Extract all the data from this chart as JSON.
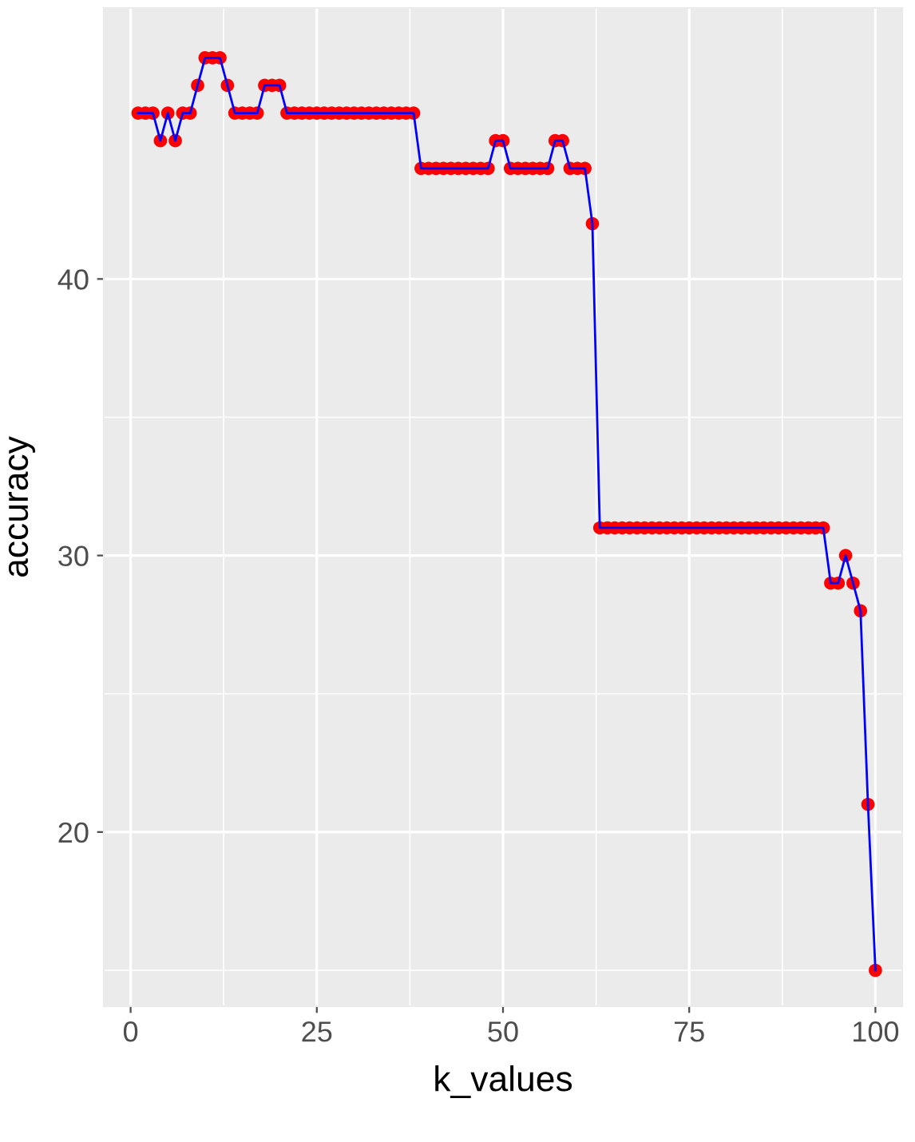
{
  "chart_data": {
    "type": "line",
    "xlabel": "k_values",
    "ylabel": "accuracy",
    "x": [
      1,
      2,
      3,
      4,
      5,
      6,
      7,
      8,
      9,
      10,
      11,
      12,
      13,
      14,
      15,
      16,
      17,
      18,
      19,
      20,
      21,
      22,
      23,
      24,
      25,
      26,
      27,
      28,
      29,
      30,
      31,
      32,
      33,
      34,
      35,
      36,
      37,
      38,
      39,
      40,
      41,
      42,
      43,
      44,
      45,
      46,
      47,
      48,
      49,
      50,
      51,
      52,
      53,
      54,
      55,
      56,
      57,
      58,
      59,
      60,
      61,
      62,
      63,
      64,
      65,
      66,
      67,
      68,
      69,
      70,
      71,
      72,
      73,
      74,
      75,
      76,
      77,
      78,
      79,
      80,
      81,
      82,
      83,
      84,
      85,
      86,
      87,
      88,
      89,
      90,
      91,
      92,
      93,
      94,
      95,
      96,
      97,
      98,
      99,
      100
    ],
    "series": [
      {
        "color": "#0000ff",
        "colors": [
          "#ff0000",
          "#ff0000",
          "#ff0000",
          "#ff0000",
          "#ff0000",
          "#ff0000",
          "#ff0000",
          "#ff0000",
          "#ff0000",
          "#ff0000",
          "#ff0000",
          "#ff0000",
          "#ff0000",
          "#ff0000",
          "#ff0000",
          "#ff0000",
          "#ff0000",
          "#ff0000",
          "#ff0000",
          "#ff0000",
          "#ff0000",
          "#ff0000",
          "#ff0000",
          "#ff0000",
          "#ff0000",
          "#ff0000",
          "#ff0000",
          "#ff0000",
          "#ff0000",
          "#ff0000",
          "#ff0000",
          "#ff0000",
          "#ff0000",
          "#ff0000",
          "#ff0000",
          "#ff0000",
          "#ff0000",
          "#ff0000",
          "#ff0000",
          "#ff0000",
          "#ff0000",
          "#ff0000",
          "#ff0000",
          "#ff0000",
          "#ff0000",
          "#ff0000",
          "#ff0000",
          "#ff0000",
          "#ff0000",
          "#ff0000",
          "#ff0000",
          "#ff0000",
          "#ff0000",
          "#ff0000",
          "#ff0000",
          "#ff0000",
          "#ff0000",
          "#ff0000",
          "#ff0000",
          "#ff0000",
          "#ff0000",
          "#ff0000",
          "#ff0000",
          "#ff0000",
          "#ff0000",
          "#ff0000",
          "#ff0000",
          "#ff0000",
          "#ff0000",
          "#ff0000",
          "#ff0000",
          "#ff0000",
          "#ff0000",
          "#ff0000",
          "#ff0000",
          "#ff0000",
          "#ff0000",
          "#ff0000",
          "#ff0000",
          "#ff0000",
          "#ff0000",
          "#ff0000",
          "#ff0000",
          "#ff0000",
          "#ff0000",
          "#ff0000",
          "#ff0000",
          "#ff0000",
          "#ff0000",
          "#ff0000",
          "#ff0000",
          "#ff0000",
          "#ff0000",
          "#ff0000",
          "#ff0000",
          "#ff0000",
          "#ff0000",
          "#ff0000",
          "#ff0000",
          "#ff0000"
        ],
        "values": [
          46,
          46,
          46,
          45,
          46,
          45,
          46,
          46,
          47,
          48,
          48,
          48,
          47,
          46,
          46,
          46,
          46,
          47,
          47,
          47,
          46,
          46,
          46,
          46,
          46,
          46,
          46,
          46,
          46,
          46,
          46,
          46,
          46,
          46,
          46,
          46,
          46,
          46,
          44,
          44,
          44,
          44,
          44,
          44,
          44,
          44,
          44,
          44,
          45,
          45,
          44,
          44,
          44,
          44,
          44,
          44,
          45,
          45,
          44,
          44,
          44,
          42,
          31,
          31,
          31,
          31,
          31,
          31,
          31,
          31,
          31,
          31,
          31,
          31,
          31,
          31,
          31,
          31,
          31,
          31,
          31,
          31,
          31,
          31,
          31,
          31,
          31,
          31,
          31,
          31,
          31,
          31,
          31,
          29,
          29,
          30,
          29,
          28,
          21,
          15
        ]
      }
    ],
    "marker": "circle",
    "line_style": "solid",
    "grid": true,
    "xlim": [
      -3.6,
      103.6
    ],
    "ylim": [
      13.7,
      49.8
    ],
    "xticks": [
      0,
      25,
      50,
      75,
      100
    ],
    "yticks": [
      20,
      30,
      40
    ]
  }
}
